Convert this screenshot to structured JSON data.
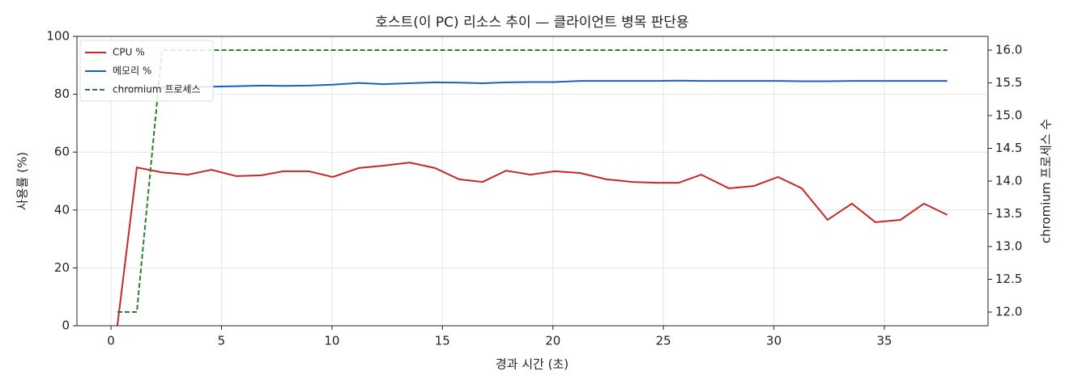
{
  "chart_data": {
    "type": "line",
    "title": "호스트(이 PC) 리소스 추이 — 클라이언트 병목 판단용",
    "x_label": "경과 시간 (초)",
    "y_label": "사용률 (%)",
    "y2_label": "chromium 프로세스 수",
    "x": [
      0.29,
      1.17,
      2.31,
      3.48,
      4.54,
      5.68,
      6.81,
      7.8,
      8.94,
      10.04,
      11.21,
      12.31,
      13.52,
      14.66,
      15.76,
      16.82,
      17.88,
      18.98,
      20.08,
      21.22,
      22.43,
      23.6,
      24.7,
      25.69,
      26.71,
      27.96,
      29.09,
      30.19,
      31.26,
      32.43,
      33.53,
      34.59,
      35.73,
      36.79,
      37.85
    ],
    "series": [
      {
        "name": "CPU %",
        "color": "#c62828",
        "values": [
          0,
          54.7,
          53,
          52.2,
          53.9,
          51.7,
          52,
          53.4,
          53.4,
          51.4,
          54.5,
          55.3,
          56.4,
          54.5,
          50.6,
          49.7,
          53.6,
          52.2,
          53.4,
          52.8,
          50.6,
          49.7,
          49.4,
          49.4,
          52.2,
          47.5,
          48.3,
          51.4,
          47.5,
          36.6,
          42.2,
          35.8,
          36.6,
          42.2,
          38.3
        ]
      },
      {
        "name": "메모리 %",
        "color": "#1565c0",
        "values": [
          82,
          82.2,
          82.3,
          82.4,
          82.6,
          82.8,
          83,
          82.9,
          83,
          83.3,
          83.9,
          83.5,
          83.8,
          84.1,
          84,
          83.8,
          84.1,
          84.2,
          84.2,
          84.6,
          84.6,
          84.6,
          84.6,
          84.7,
          84.6,
          84.6,
          84.6,
          84.6,
          84.5,
          84.5,
          84.6,
          84.6,
          84.6,
          84.6,
          84.6
        ]
      },
      {
        "name": "chromium 프로세스",
        "color": "#2e7d32",
        "dash": true,
        "axis": "y2",
        "values": [
          12,
          12,
          16,
          16,
          16,
          16,
          16,
          16,
          16,
          16,
          16,
          16,
          16,
          16,
          16,
          16,
          16,
          16,
          16,
          16,
          16,
          16,
          16,
          16,
          16,
          16,
          16,
          16,
          16,
          16,
          16,
          16,
          16,
          16,
          16
        ]
      }
    ],
    "xlim": [
      -1.54,
      39.69
    ],
    "xticks": [
      0,
      5,
      10,
      15,
      20,
      25,
      30,
      35
    ],
    "ylim": [
      0,
      100
    ],
    "yticks": [
      0,
      20,
      40,
      60,
      80,
      100
    ],
    "y2lim": [
      11.79,
      16.21
    ],
    "y2ticks": [
      {
        "value": 12,
        "label": "12.0"
      },
      {
        "value": 12.5,
        "label": "12.5"
      },
      {
        "value": 13,
        "label": "13.0"
      },
      {
        "value": 13.5,
        "label": "13.5"
      },
      {
        "value": 14,
        "label": "14.0"
      },
      {
        "value": 14.5,
        "label": "14.5"
      },
      {
        "value": 15,
        "label": "15.0"
      },
      {
        "value": 15.5,
        "label": "15.5"
      },
      {
        "value": 16,
        "label": "16.0"
      }
    ],
    "grid": true,
    "legend": "upper-left"
  }
}
